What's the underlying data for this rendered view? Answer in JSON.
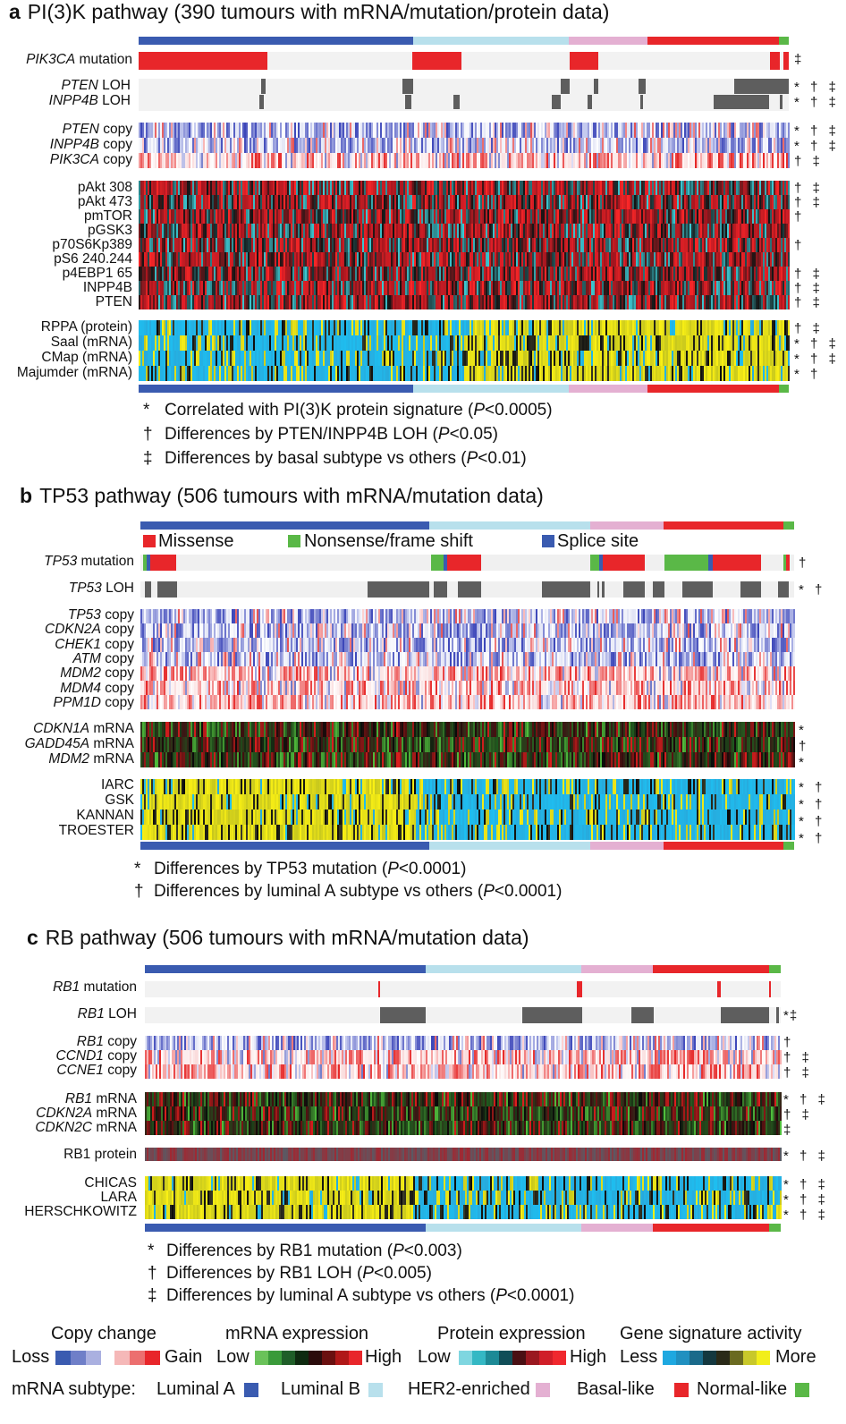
{
  "panel_a": {
    "letter": "a",
    "title": "PI(3)K pathway (390 tumours with mRNA/mutation/protein data)",
    "labels": {
      "pik3ca_mut_gene": "PIK3CA",
      "pik3ca_mut_suffix": " mutation",
      "pten_loh_gene": "PTEN",
      "pten_loh_suffix": " LOH",
      "inpp4b_loh_gene": "INPP4B",
      "inpp4b_loh_suffix": " LOH",
      "pten_copy_gene": "PTEN",
      "pten_copy_suffix": " copy",
      "inpp4b_copy_gene": "INPP4B",
      "inpp4b_copy_suffix": " copy",
      "pik3ca_copy_gene": "PIK3CA",
      "pik3ca_copy_suffix": " copy",
      "proteins": [
        "pAkt 308",
        "pAkt 473",
        "pmTOR",
        "pGSK3",
        "p70S6Kp389",
        "pS6 240.244",
        "p4EBP1 65",
        "INPP4B",
        "PTEN"
      ],
      "signatures": [
        "RPPA (protein)",
        "Saal (mRNA)",
        "CMap (mRNA)",
        "Majumder (mRNA)"
      ]
    },
    "marks": {
      "pik3ca_mut": "‡",
      "pten_loh": "* † ‡",
      "inpp4b_loh": "* † ‡",
      "pten_copy": "* † ‡",
      "inpp4b_copy": "* † ‡",
      "pik3ca_copy": "† ‡",
      "proteins": [
        "† ‡",
        "† ‡",
        "†",
        "",
        "†",
        "",
        "† ‡",
        "† ‡",
        "† ‡"
      ],
      "signatures": [
        "† ‡",
        "* † ‡",
        "* † ‡",
        "* †"
      ]
    },
    "notes": [
      {
        "sym": "*",
        "text": "Correlated with PI(3)K protein signature (",
        "p": "P",
        "rest": "<0.0005)"
      },
      {
        "sym": "†",
        "text": "Differences by PTEN/INPP4B LOH (",
        "p": "P",
        "rest": "<0.05)"
      },
      {
        "sym": "‡",
        "text": "Differences by basal subtype vs others (",
        "p": "P",
        "rest": "<0.01)"
      }
    ]
  },
  "panel_b": {
    "letter": "b",
    "title": "TP53 pathway (506 tumours with mRNA/mutation data)",
    "mutation_legend": [
      "Missense",
      "Nonsense/frame shift",
      "Splice site"
    ],
    "labels": {
      "tp53_mut_gene": "TP53",
      "tp53_mut_suffix": " mutation",
      "tp53_loh_gene": "TP53",
      "tp53_loh_suffix": " LOH",
      "copy_genes": [
        "TP53",
        "CDKN2A",
        "CHEK1",
        "ATM",
        "MDM2",
        "MDM4",
        "PPM1D"
      ],
      "copy_suffix": " copy",
      "mrna_genes": [
        "CDKN1A",
        "GADD45A",
        "MDM2"
      ],
      "mrna_suffix": " mRNA",
      "signatures": [
        "IARC",
        "GSK",
        "KANNAN",
        "TROESTER"
      ]
    },
    "marks": {
      "tp53_mut": "†",
      "tp53_loh": "* †",
      "mrna": [
        "*",
        "†",
        "*"
      ],
      "signatures": [
        "* †",
        "* †",
        "* †",
        "* †"
      ]
    },
    "notes": [
      {
        "sym": "*",
        "text": "Differences by TP53 mutation (",
        "p": "P",
        "rest": "<0.0001)"
      },
      {
        "sym": "†",
        "text": "Differences by luminal A subtype vs others (",
        "p": "P",
        "rest": "<0.0001)"
      }
    ]
  },
  "panel_c": {
    "letter": "c",
    "title": "RB pathway (506 tumours with mRNA/mutation data)",
    "labels": {
      "rb1_mut_gene": "RB1",
      "rb1_mut_suffix": " mutation",
      "rb1_loh_gene": "RB1",
      "rb1_loh_suffix": " LOH",
      "copy_genes": [
        "RB1",
        "CCND1",
        "CCNE1"
      ],
      "copy_suffix": " copy",
      "mrna_genes": [
        "RB1",
        "CDKN2A",
        "CDKN2C"
      ],
      "mrna_suffix": " mRNA",
      "protein": "RB1 protein",
      "signatures": [
        "CHICAS",
        "LARA",
        "HERSCHKOWITZ"
      ]
    },
    "marks": {
      "rb1_loh": "*‡",
      "copy": [
        "†",
        "† ‡",
        "† ‡"
      ],
      "mrna": [
        "* † ‡",
        "† ‡",
        "‡"
      ],
      "protein": "* † ‡",
      "signatures": [
        "* † ‡",
        "* † ‡",
        "* † ‡"
      ]
    },
    "notes": [
      {
        "sym": "*",
        "text": "Differences by RB1 mutation (",
        "p": "P",
        "rest": "<0.003)"
      },
      {
        "sym": "†",
        "text": "Differences by RB1 LOH (",
        "p": "P",
        "rest": "<0.005)"
      },
      {
        "sym": "‡",
        "text": "Differences by luminal A subtype vs others (",
        "p": "P",
        "rest": "<0.0001)"
      }
    ]
  },
  "legend": {
    "copy_change": {
      "title": "Copy change",
      "low": "Loss",
      "high": "Gain"
    },
    "mrna_expression": {
      "title": "mRNA expression",
      "low": "Low",
      "high": "High"
    },
    "protein_expression": {
      "title": "Protein expression",
      "low": "Low",
      "high": "High"
    },
    "gene_signature": {
      "title": "Gene signature activity",
      "low": "Less",
      "high": "More"
    },
    "subtype_title": "mRNA subtype:",
    "subtypes": [
      "Luminal A",
      "Luminal B",
      "HER2-enriched",
      "Basal-like",
      "Normal-like"
    ]
  },
  "colors": {
    "luminal_a": "#3a5bb0",
    "luminal_b": "#b8e0ec",
    "her2": "#e4b0d2",
    "basal": "#e8262a",
    "normal": "#5ab847",
    "mutation": "#e8262a",
    "loh": "#5e5e5e",
    "missense": "#e8262a",
    "nonsense": "#5ab847",
    "splice": "#3a5bb0"
  }
}
